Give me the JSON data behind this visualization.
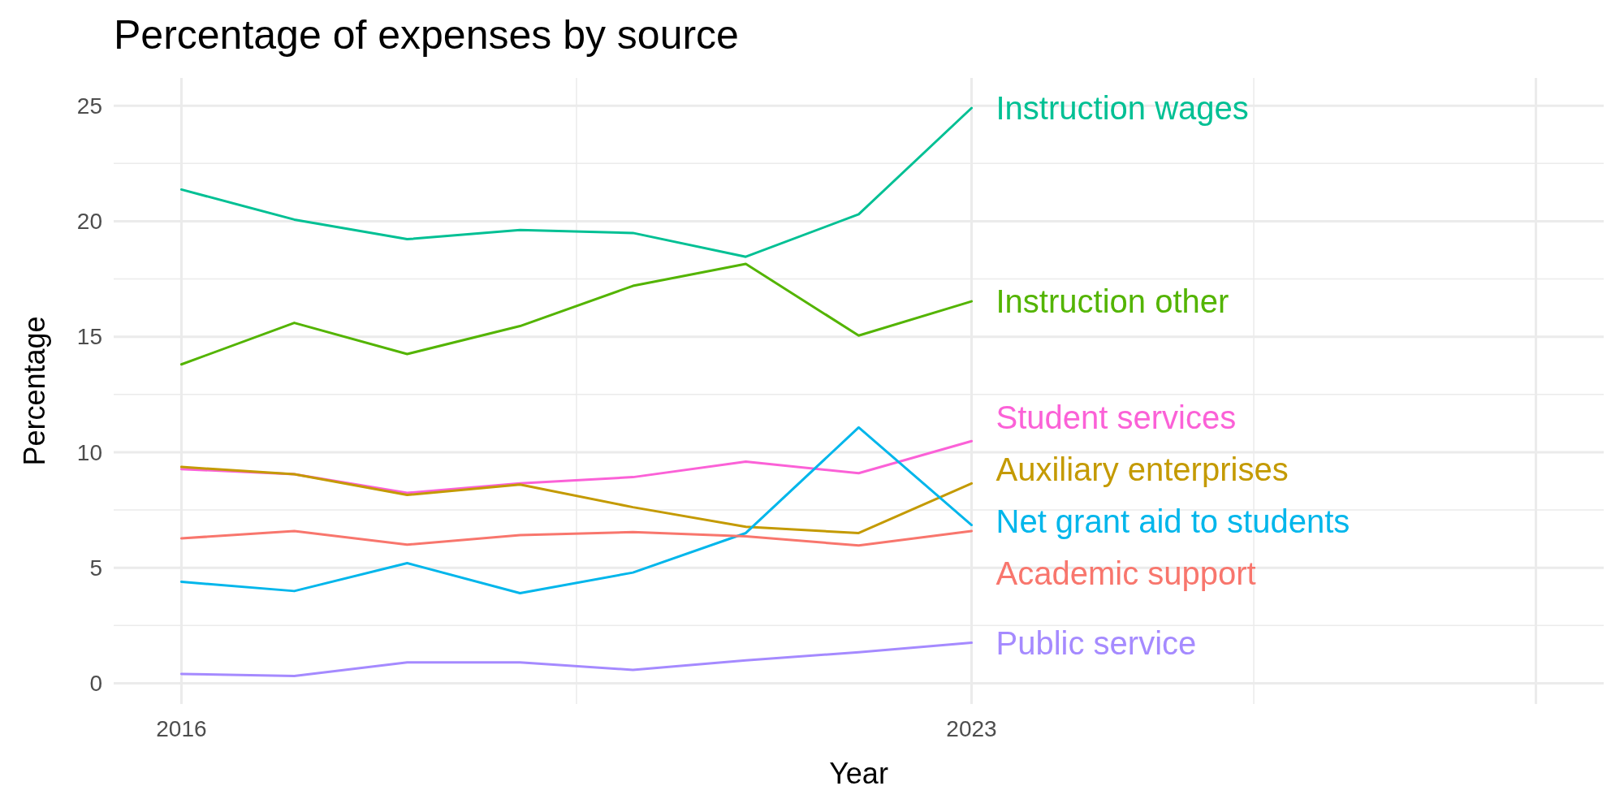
{
  "chart_data": {
    "type": "line",
    "title": "Percentage of expenses by source",
    "xlabel": "Year",
    "ylabel": "Percentage",
    "x": [
      2016,
      2017,
      2018,
      2019,
      2020,
      2021,
      2022,
      2023
    ],
    "xlim": [
      2015.4,
      2028.6
    ],
    "xticks": [
      2016,
      2023,
      {
        "value": 2028,
        "label": null
      }
    ],
    "ylim": [
      -0.9,
      26.2
    ],
    "yticks": [
      0,
      5,
      10,
      15,
      20,
      25
    ],
    "grid": true,
    "line_style": "solid",
    "marker": "none",
    "series": [
      {
        "name": "Instruction wages",
        "color": "#00c094",
        "values": [
          21.37,
          20.07,
          19.22,
          19.62,
          19.49,
          18.46,
          20.3,
          24.9
        ]
      },
      {
        "name": "Instruction other",
        "color": "#53b400",
        "values": [
          13.8,
          15.6,
          14.25,
          15.46,
          17.2,
          18.15,
          15.05,
          16.53
        ]
      },
      {
        "name": "Student services",
        "color": "#fb61d7",
        "values": [
          9.27,
          9.05,
          8.24,
          8.65,
          8.92,
          9.59,
          9.09,
          10.48
        ]
      },
      {
        "name": "Auxiliary enterprises",
        "color": "#c49a00",
        "values": [
          9.36,
          9.05,
          8.15,
          8.6,
          7.62,
          6.77,
          6.5,
          8.65
        ]
      },
      {
        "name": "Net grant aid to students",
        "color": "#00b6eb",
        "values": [
          4.39,
          3.99,
          5.2,
          3.9,
          4.79,
          6.5,
          11.07,
          6.85
        ]
      },
      {
        "name": "Academic support",
        "color": "#f8766d",
        "values": [
          6.27,
          6.59,
          6.0,
          6.41,
          6.54,
          6.36,
          5.96,
          6.59
        ]
      },
      {
        "name": "Public service",
        "color": "#a58aff",
        "values": [
          0.4,
          0.31,
          0.9,
          0.9,
          0.58,
          0.99,
          1.34,
          1.75
        ]
      }
    ]
  }
}
